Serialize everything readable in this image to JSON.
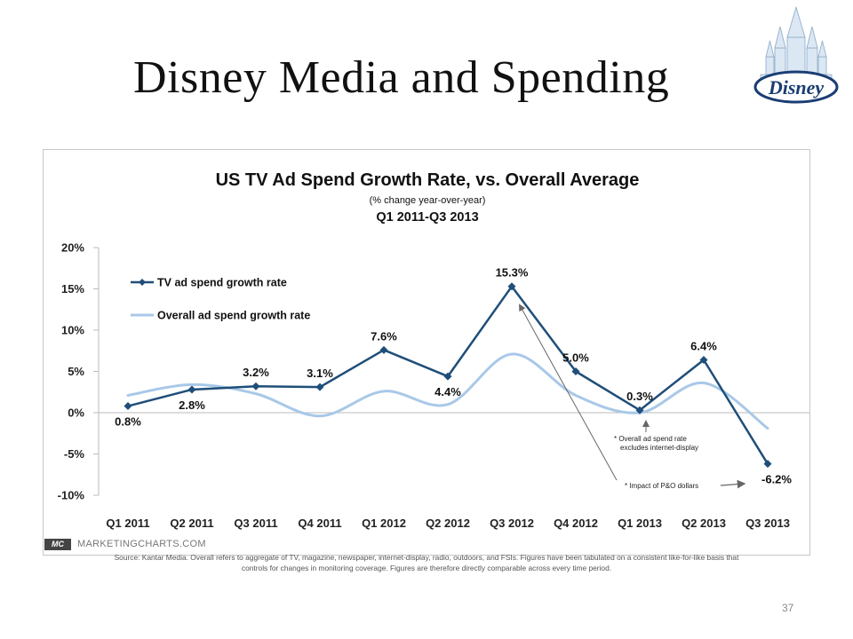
{
  "slide": {
    "title": "Disney Media and Spending",
    "page_number": "37",
    "logo_text": "Disney"
  },
  "chart_data": {
    "type": "line",
    "title": "US TV Ad Spend Growth Rate, vs. Overall Average",
    "subtitle": "(% change year-over-year)",
    "date_range": "Q1 2011-Q3 2013",
    "categories": [
      "Q1 2011",
      "Q2 2011",
      "Q3 2011",
      "Q4 2011",
      "Q1 2012",
      "Q2 2012",
      "Q3 2012",
      "Q4 2012",
      "Q1 2013",
      "Q2 2013",
      "Q3 2013"
    ],
    "y_ticks": [
      "20%",
      "15%",
      "10%",
      "5%",
      "0%",
      "-5%",
      "-10%"
    ],
    "ylim": [
      -10,
      20
    ],
    "series": [
      {
        "name": "TV ad spend growth rate",
        "color": "#1f4e79",
        "values": [
          0.8,
          2.8,
          3.2,
          3.1,
          7.6,
          4.4,
          15.3,
          5.0,
          0.3,
          6.4,
          -6.2
        ],
        "labels": [
          "0.8%",
          "2.8%",
          "3.2%",
          "3.1%",
          "7.6%",
          "4.4%",
          "15.3%",
          "5.0%",
          "0.3%",
          "6.4%",
          "-6.2%"
        ]
      },
      {
        "name": "Overall ad spend growth rate",
        "color": "#a9c8e8",
        "values": [
          2.1,
          3.4,
          2.3,
          -0.4,
          2.6,
          1.0,
          7.1,
          2.1,
          0.0,
          3.6,
          -1.9
        ]
      }
    ],
    "annotations": [
      "* Overall ad spend rate excludes internet-display",
      "* Impact of P&O dollars"
    ],
    "legend_position": "top-left",
    "grid": false
  },
  "footer": {
    "brand_logo": "MC",
    "brand_name": "MARKETINGCHARTS.COM",
    "source_line_1": "Source: Kantar Media. Overall refers to aggregate of TV, magazine, newspaper, internet-display, radio, outdoors, and FSIs. Figures have been tabulated on a consistent like-for-like basis that",
    "source_line_2": "controls for changes in monitoring coverage. Figures are therefore directly comparable across every time period."
  },
  "colors": {
    "tv_series": "#1f4e79",
    "overall_series": "#a9c8e8",
    "annotation_arrow": "#666666"
  }
}
